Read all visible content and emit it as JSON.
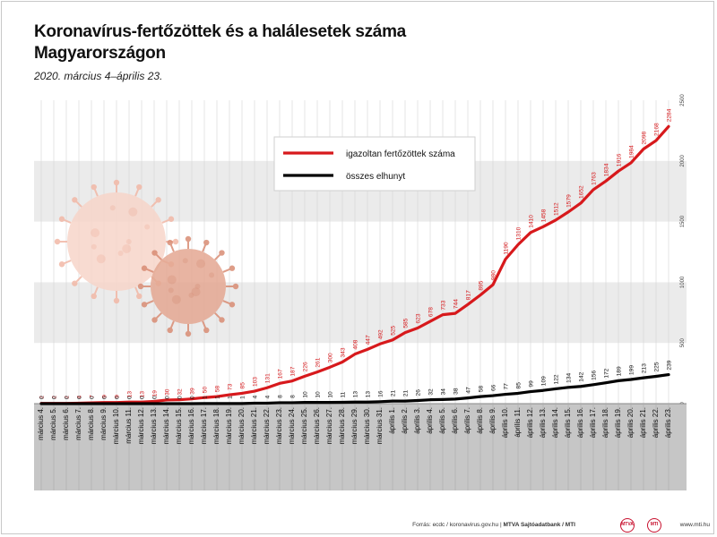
{
  "header": {
    "title_line1": "Koronavírus-fertőzöttek és a halálesetek száma",
    "title_line2": "Magyarországon",
    "subtitle": "2020. március 4–április 23."
  },
  "footer": {
    "source_prefix": "Forrás: ecdc / koronavirus.gov.hu | ",
    "source_bold": "MTVA Sajtóadatbank / MTI",
    "logo1": "MTVA",
    "logo2": "MTI",
    "url": "www.mti.hu"
  },
  "colors": {
    "infected": "#d7191c",
    "deaths": "#000000",
    "band": "#ebebeb",
    "axis_area": "#c6c6c6"
  },
  "chart_data": {
    "type": "line",
    "categories": [
      "március 4.",
      "március 5.",
      "március 6.",
      "március 7.",
      "március 8.",
      "március 9.",
      "március 10.",
      "március 11.",
      "március 12.",
      "március 13.",
      "március 14.",
      "március 15.",
      "március 16.",
      "március 17.",
      "március 18.",
      "március 19.",
      "március 20.",
      "március 21.",
      "március 22.",
      "március 23.",
      "március 24.",
      "március 25.",
      "március 26.",
      "március 27.",
      "március 28.",
      "március 29.",
      "március 30.",
      "március 31.",
      "április 1.",
      "április 2.",
      "április 3.",
      "április 4.",
      "április 5.",
      "április 6.",
      "április 7.",
      "április 8.",
      "április 9.",
      "április 10.",
      "április 11.",
      "április 12.",
      "április 13.",
      "április 14.",
      "április 15.",
      "április 16.",
      "április 17.",
      "április 18.",
      "április 19.",
      "április 20.",
      "április 21.",
      "április 22.",
      "április 23."
    ],
    "series": [
      {
        "name": "igazoltan fertőzöttek száma",
        "color": "#d7191c",
        "values": [
          2,
          2,
          2,
          4,
          7,
          9,
          9,
          13,
          13,
          19,
          30,
          32,
          39,
          50,
          58,
          73,
          85,
          103,
          131,
          167,
          187,
          226,
          261,
          300,
          343,
          408,
          447,
          492,
          525,
          585,
          623,
          678,
          733,
          744,
          817,
          895,
          980,
          1190,
          1310,
          1410,
          1458,
          1512,
          1579,
          1652,
          1763,
          1834,
          1916,
          1984,
          2098,
          2168,
          2284
        ]
      },
      {
        "name": "összes elhunyt",
        "color": "#000000",
        "values": [
          0,
          0,
          0,
          0,
          0,
          0,
          0,
          0,
          0,
          0,
          0,
          0,
          0,
          1,
          1,
          1,
          1,
          4,
          4,
          8,
          8,
          10,
          10,
          10,
          11,
          13,
          13,
          16,
          21,
          21,
          26,
          32,
          34,
          38,
          47,
          58,
          66,
          77,
          85,
          99,
          109,
          122,
          134,
          142,
          156,
          172,
          189,
          199,
          213,
          225,
          239
        ]
      }
    ],
    "ylim": [
      0,
      2500
    ],
    "yticks": [
      0,
      500,
      1000,
      1500,
      2000,
      2500
    ],
    "grid": true,
    "legend_position": "top-center"
  }
}
